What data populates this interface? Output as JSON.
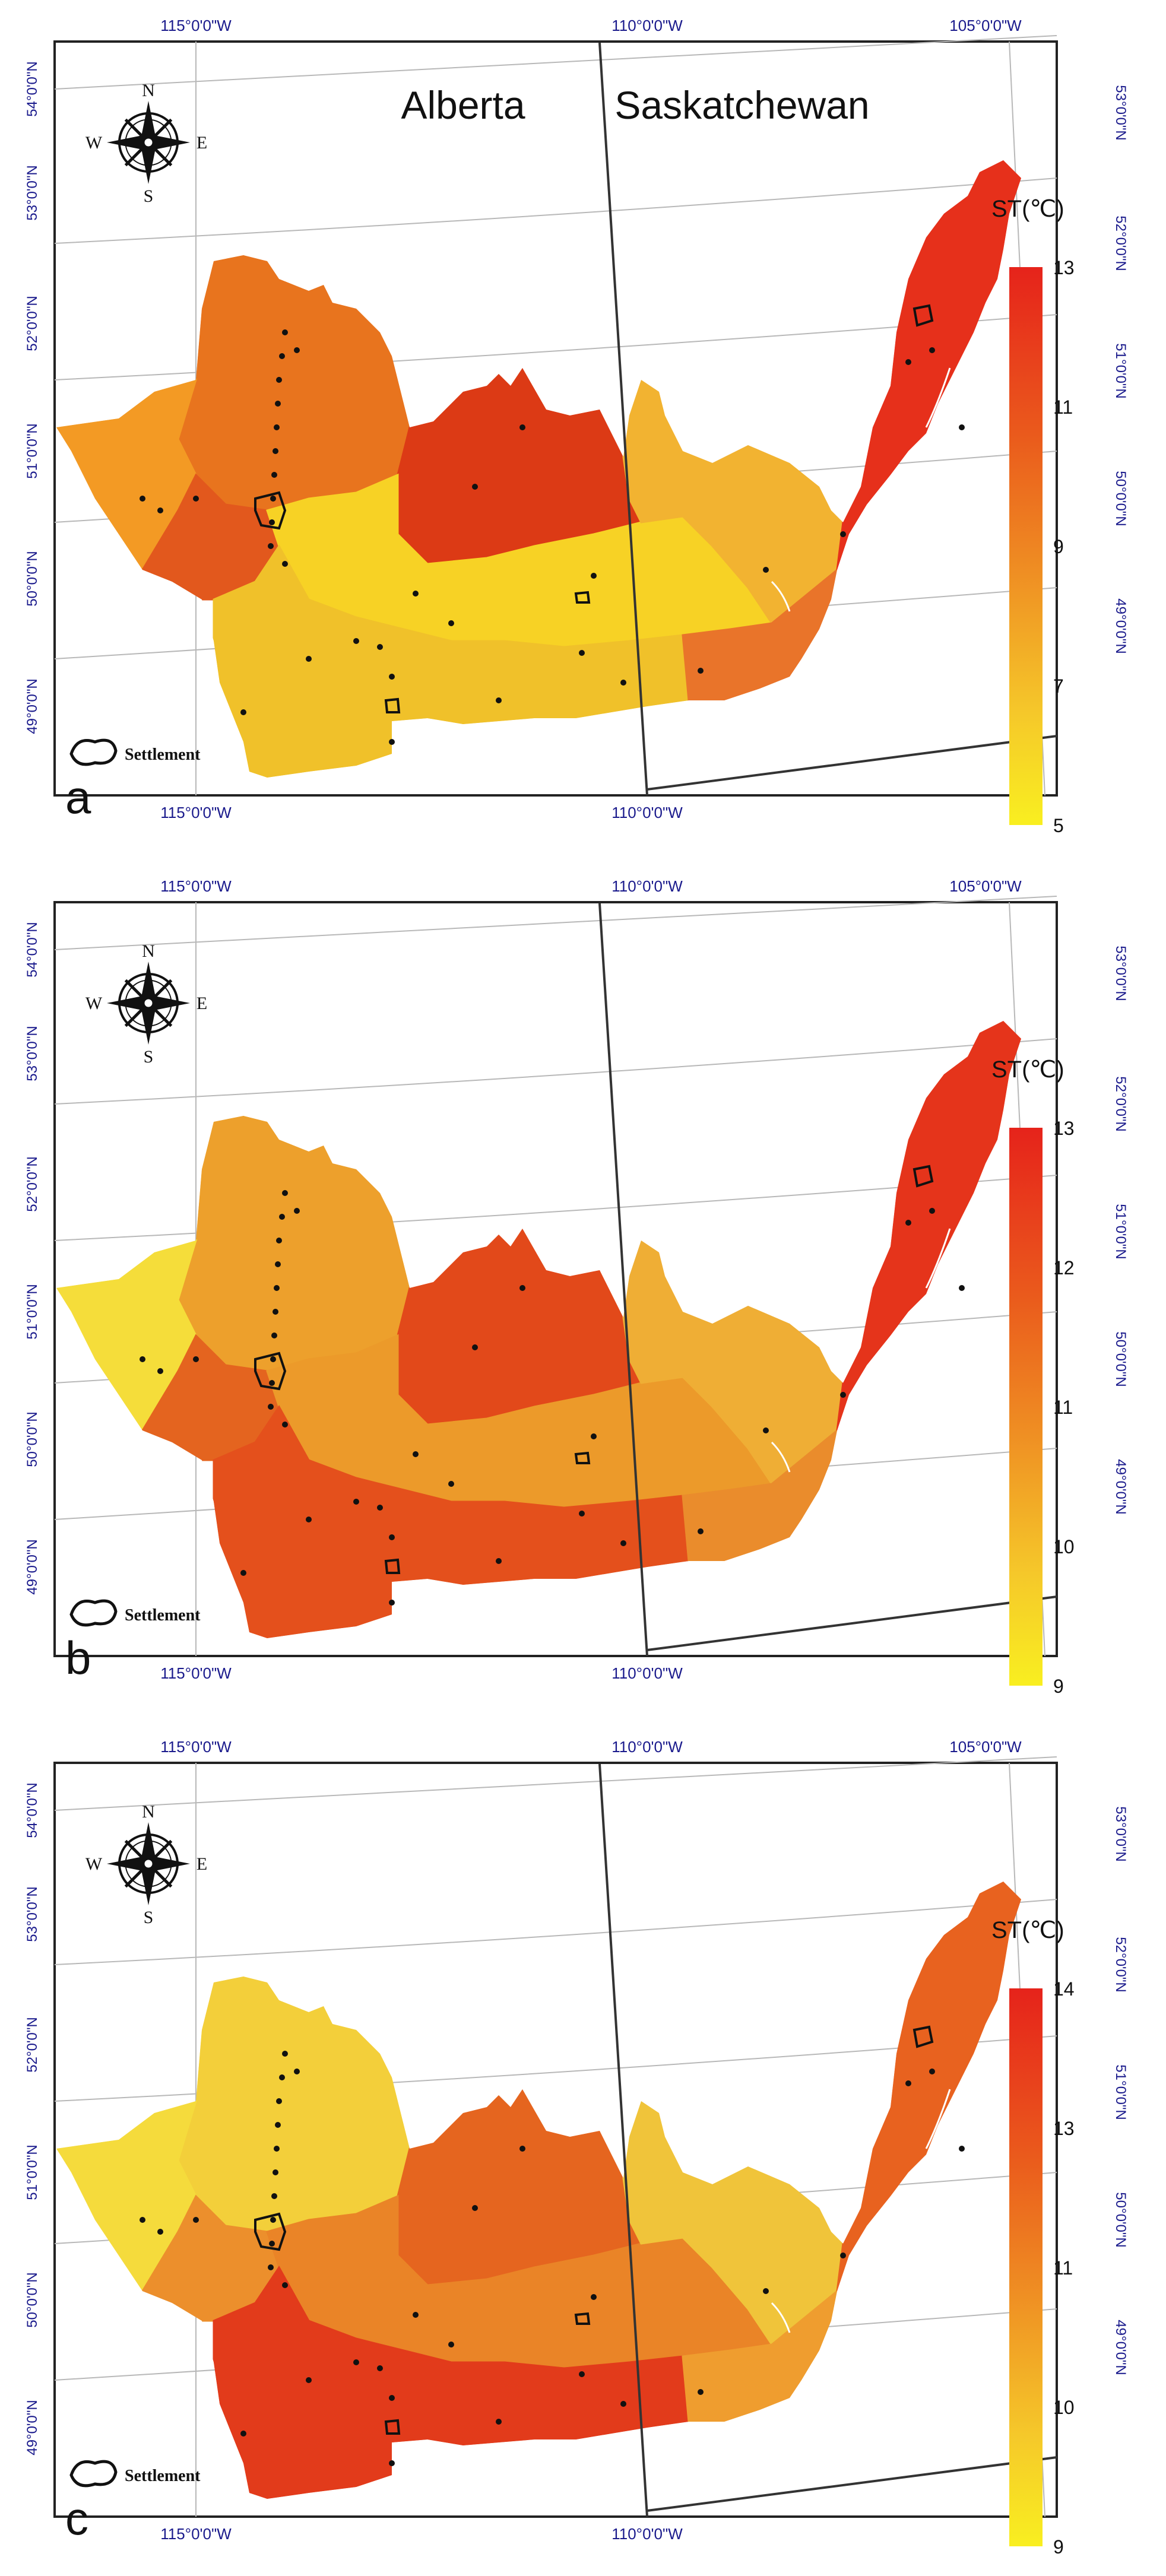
{
  "panels": [
    {
      "letter": "a",
      "province_labels": [
        "Alberta",
        "Saskatchewan"
      ],
      "legend_title": "ST(℃)",
      "legend_ticks": [
        "13",
        "11",
        "9",
        "7",
        "5"
      ],
      "settlement_label": "Settlement",
      "lon_labels": [
        "115°0'0\"W",
        "110°0'0\"W",
        "105°0'0\"W"
      ],
      "lat_labels_left": [
        "54°0'0\"N",
        "53°0'0\"N",
        "52°0'0\"N",
        "51°0'0\"N",
        "50°0'0\"N",
        "49°0'0\"N"
      ],
      "lat_labels_right": [
        "53°0'0\"N",
        "52°0'0\"N",
        "51°0'0\"N",
        "50°0'0\"N",
        "49°0'0\"N"
      ],
      "zone_colors": {
        "northwest": "#e8741e",
        "west_edge": "#f39a24",
        "southwest_hot": "#e2581d",
        "central_north": "#dc3a15",
        "central_band": "#f7d225",
        "south": "#f0c12a",
        "southeast": "#f2b331",
        "east": "#e9742a",
        "arm": "#e6301b"
      }
    },
    {
      "letter": "b",
      "province_labels": [],
      "legend_title": "ST(℃)",
      "legend_ticks": [
        "13",
        "12",
        "11",
        "10",
        "9"
      ],
      "settlement_label": "Settlement",
      "lon_labels": [
        "115°0'0\"W",
        "110°0'0\"W",
        "105°0'0\"W"
      ],
      "lat_labels_left": [
        "54°0'0\"N",
        "53°0'0\"N",
        "52°0'0\"N",
        "51°0'0\"N",
        "50°0'0\"N",
        "49°0'0\"N"
      ],
      "lat_labels_right": [
        "53°0'0\"N",
        "52°0'0\"N",
        "51°0'0\"N",
        "50°0'0\"N",
        "49°0'0\"N"
      ],
      "zone_colors": {
        "northwest": "#eda02c",
        "west_edge": "#f5dd3a",
        "southwest_hot": "#e4641f",
        "central_north": "#e2491a",
        "central_band": "#ec9a2a",
        "south": "#e4501c",
        "southeast": "#efae35",
        "east": "#ea8c2c",
        "arm": "#e5341b"
      }
    },
    {
      "letter": "c",
      "province_labels": [],
      "legend_title": "ST(℃)",
      "legend_ticks": [
        "14",
        "13",
        "11",
        "10",
        "9"
      ],
      "settlement_label": "Settlement",
      "lon_labels": [
        "115°0'0\"W",
        "110°0'0\"W",
        "105°0'0\"W"
      ],
      "lat_labels_left": [
        "54°0'0\"N",
        "53°0'0\"N",
        "52°0'0\"N",
        "51°0'0\"N",
        "50°0'0\"N",
        "49°0'0\"N"
      ],
      "lat_labels_right": [
        "53°0'0\"N",
        "52°0'0\"N",
        "51°0'0\"N",
        "50°0'0\"N",
        "49°0'0\"N"
      ],
      "zone_colors": {
        "northwest": "#f3cf3a",
        "west_edge": "#f5db3c",
        "southwest_hot": "#ec8f2c",
        "central_north": "#e5651f",
        "central_band": "#ea8427",
        "south": "#e23b1b",
        "southeast": "#f0c43a",
        "east": "#ef9d2f",
        "arm": "#e8621f"
      }
    }
  ],
  "compass": {
    "n": "N",
    "s": "S",
    "e": "E",
    "w": "W"
  },
  "colors": {
    "label_blue": "#1a1a8c",
    "frame": "#222222",
    "graticule": "#b8b8b8",
    "boundary": "#333333"
  }
}
